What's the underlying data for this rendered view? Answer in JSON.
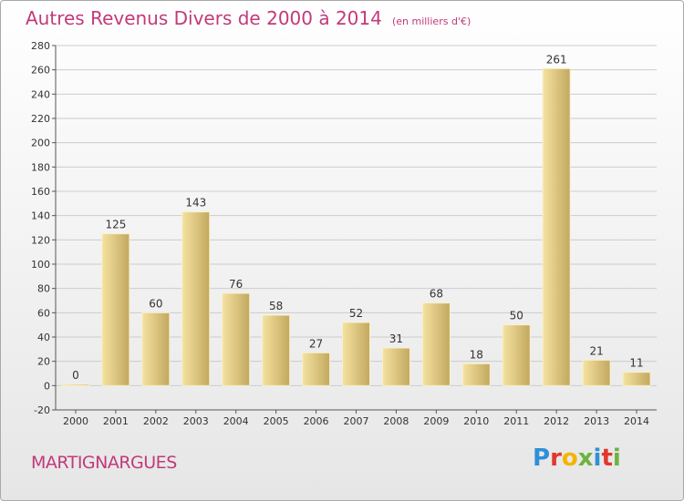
{
  "header": {
    "title": "Autres Revenus Divers de 2000 à 2014",
    "unit": "(en milliers d'€)"
  },
  "footer": {
    "commune": "MARTIGNARGUES",
    "logo_letters": [
      "P",
      "r",
      "o",
      "x",
      "i",
      "t",
      "i"
    ],
    "logo_colors": [
      "#2f8fd8",
      "#e2382b",
      "#f4b400",
      "#6db33f",
      "#2f8fd8",
      "#e2382b",
      "#6db33f"
    ]
  },
  "colors": {
    "title": "#c13a7a",
    "bar_light": "#f5e2a0",
    "bar_dark": "#c2a860",
    "grid": "#cccccc",
    "axis": "#555555"
  },
  "chart_data": {
    "type": "bar",
    "title": "Autres Revenus Divers de 2000 à 2014",
    "subtitle": "(en milliers d'€)",
    "categories": [
      "2000",
      "2001",
      "2002",
      "2003",
      "2004",
      "2005",
      "2006",
      "2007",
      "2008",
      "2009",
      "2010",
      "2011",
      "2012",
      "2013",
      "2014"
    ],
    "values": [
      0,
      125,
      60,
      143,
      76,
      58,
      27,
      52,
      31,
      68,
      18,
      50,
      261,
      21,
      11
    ],
    "ylim": [
      -20,
      280
    ],
    "yticks": [
      -20,
      0,
      20,
      40,
      60,
      80,
      100,
      120,
      140,
      160,
      180,
      200,
      220,
      240,
      260,
      280
    ],
    "grid": true,
    "legend": "none"
  }
}
